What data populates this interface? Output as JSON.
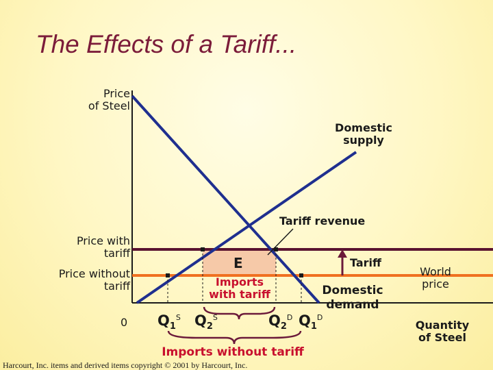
{
  "title": "The Effects of a Tariff...",
  "axes": {
    "y_label_line1": "Price",
    "y_label_line2": "of Steel",
    "x_label_line1": "Quantity",
    "x_label_line2": "of Steel",
    "origin_label": "0"
  },
  "price_levels": {
    "with_tariff_line1": "Price with",
    "with_tariff_line2": "tariff",
    "without_tariff_line1": "Price without",
    "without_tariff_line2": "tariff",
    "world_price_line1": "World",
    "world_price_line2": "price"
  },
  "curves": {
    "supply_line1": "Domestic",
    "supply_line2": "supply",
    "demand_line1": "Domestic",
    "demand_line2": "demand"
  },
  "annotations": {
    "tariff_revenue": "Tariff revenue",
    "revenue_area_label": "E",
    "tariff": "Tariff",
    "imports_with_tariff_line1": "Imports",
    "imports_with_tariff_line2": "with tariff",
    "imports_without_tariff": "Imports without tariff"
  },
  "quantities": [
    {
      "base": "Q",
      "sub": "1",
      "sup": "S"
    },
    {
      "base": "Q",
      "sub": "2",
      "sup": "S"
    },
    {
      "base": "Q",
      "sub": "2",
      "sup": "D"
    },
    {
      "base": "Q",
      "sub": "1",
      "sup": "D"
    }
  ],
  "footer": {
    "copyright": "Harcourt, Inc. items and derived items copyright © 2001 by Harcourt, Inc."
  },
  "colors": {
    "title": "#7b1c3a",
    "curves": "#1f2f8f",
    "price_with_tariff_line": "#5a1330",
    "world_price_line": "#f07020",
    "revenue_fill": "#f6c9a8",
    "imports_brace": "#6b1a3a",
    "highlight_text": "#c8102e"
  }
}
